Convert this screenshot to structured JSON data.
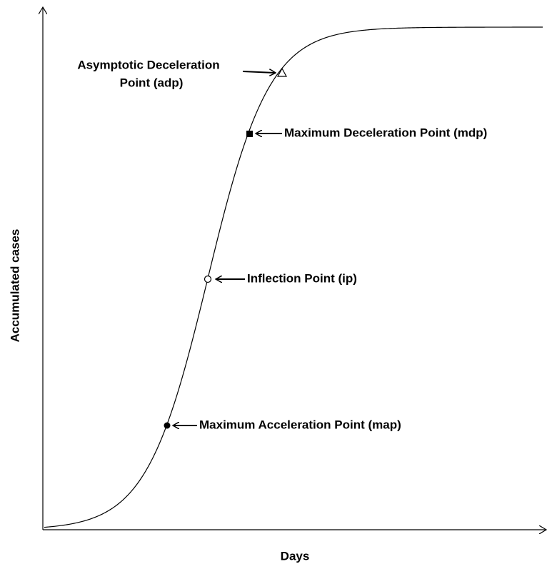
{
  "axes": {
    "x_label": "Days",
    "y_label": "Accumulated cases"
  },
  "points": [
    {
      "label_lines": [
        "Asymptotic Deceleration",
        "Point (adp)"
      ]
    },
    {
      "label": "Maximum Deceleration Point (mdp)"
    },
    {
      "label": "Inflection Point (ip)"
    },
    {
      "label": "Maximum Acceleration Point (map)"
    }
  ]
}
